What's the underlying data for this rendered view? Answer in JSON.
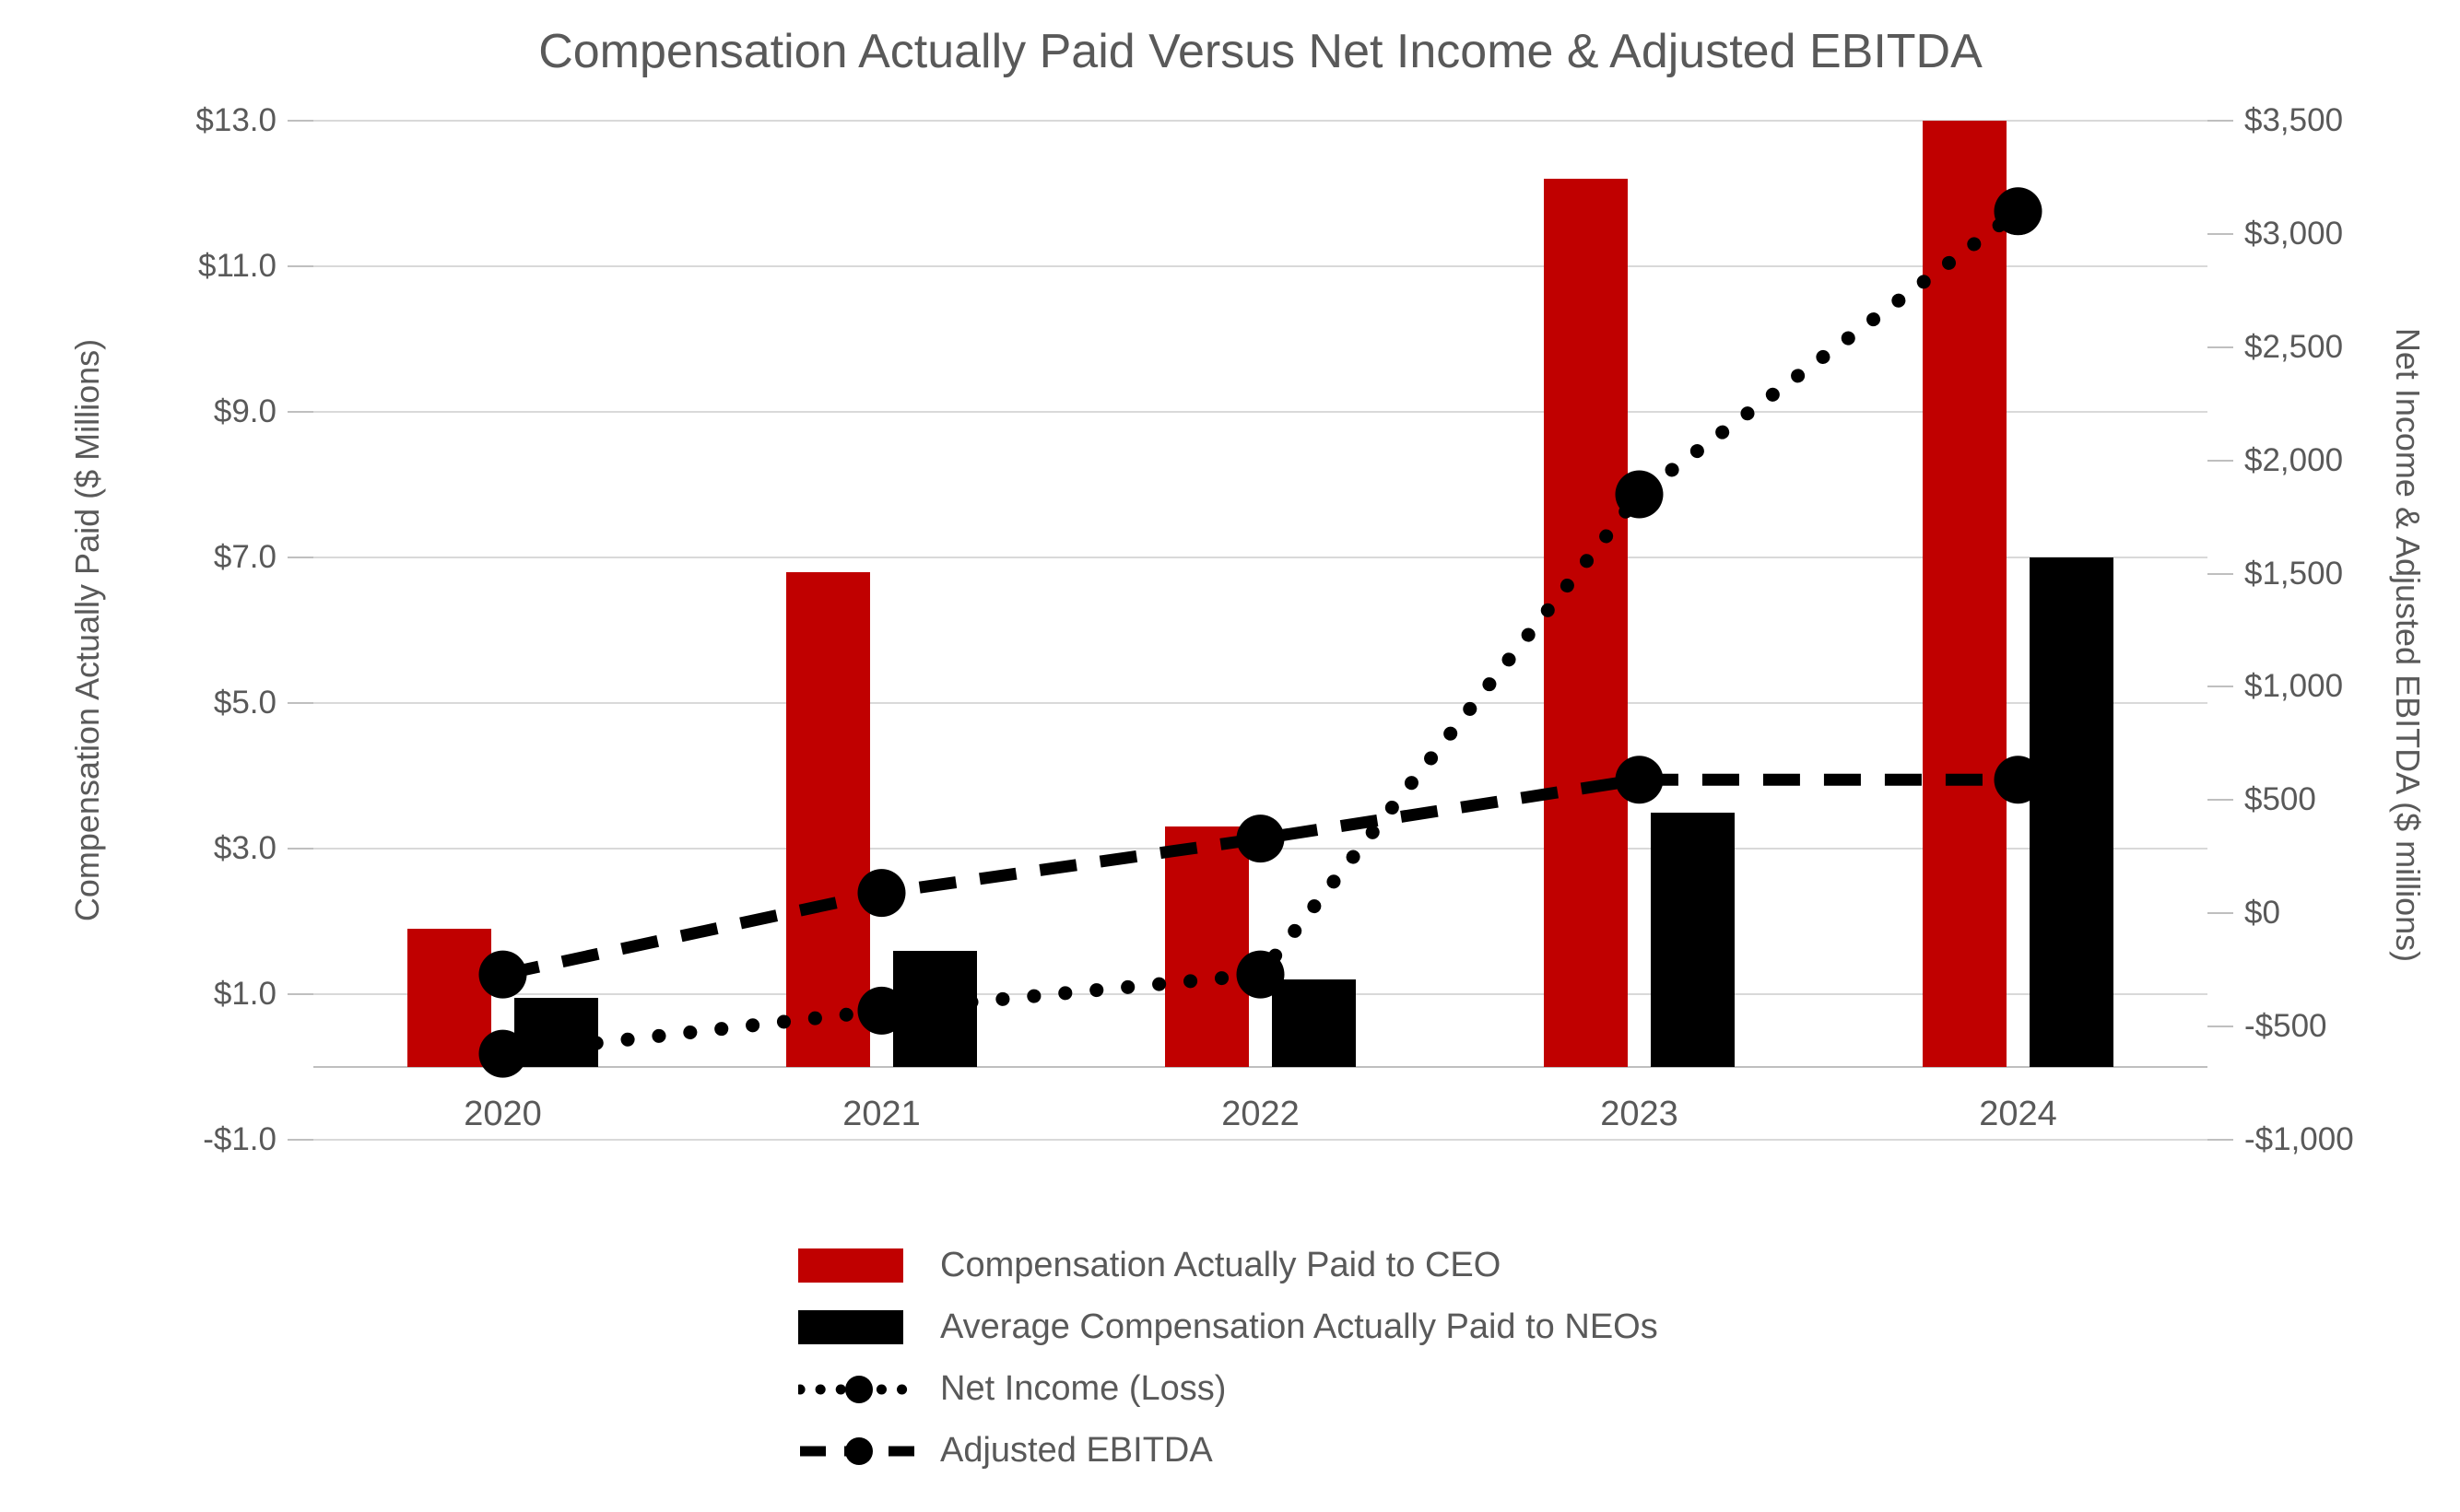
{
  "title": "Compensation Actually Paid Versus Net Income & Adjusted EBITDA",
  "chart_data": {
    "type": "bar",
    "subtype": "combo bar + line, dual axis",
    "categories": [
      "2020",
      "2021",
      "2022",
      "2023",
      "2024"
    ],
    "series": [
      {
        "name": "Compensation Actually Paid to CEO",
        "type": "bar",
        "axis": "left",
        "color": "#C00000",
        "values": [
          1.9,
          6.8,
          3.3,
          12.2,
          13.0
        ]
      },
      {
        "name": "Average Compensation Actually Paid to NEOs",
        "type": "bar",
        "axis": "left",
        "color": "#000000",
        "values": [
          0.95,
          1.6,
          1.2,
          3.5,
          7.0
        ]
      },
      {
        "name": "Net Income (Loss)",
        "type": "line",
        "style": "dotted",
        "axis": "right",
        "color": "#000000",
        "values": [
          -620,
          -430,
          -270,
          1850,
          3100
        ]
      },
      {
        "name": "Adjusted EBITDA",
        "type": "line",
        "style": "dashed",
        "axis": "right",
        "color": "#000000",
        "values": [
          -270,
          90,
          330,
          590,
          590
        ]
      }
    ],
    "left_axis": {
      "label": "Compensation Actually Paid ($ Millions)",
      "min": -1,
      "max": 13,
      "tick_values": [
        13,
        11,
        9,
        7,
        5,
        3,
        1,
        -1
      ],
      "tick_labels": [
        "$13.0",
        "$11.0",
        "$9.0",
        "$7.0",
        "$5.0",
        "$3.0",
        "$1.0",
        "-$1.0"
      ]
    },
    "right_axis": {
      "label": "Net Income & Adjusted EBITDA ($ millions)",
      "min": -1000,
      "max": 3500,
      "tick_values": [
        3500,
        3000,
        2500,
        2000,
        1500,
        1000,
        500,
        0,
        -500,
        -1000
      ],
      "tick_labels": [
        "$3,500",
        "$3,000",
        "$2,500",
        "$2,000",
        "$1,500",
        "$1,000",
        "$500",
        "$0",
        "-$500",
        "-$1,000"
      ]
    },
    "grid": "horizontal gridlines at left-axis ticks",
    "legend_position": "bottom, stacked rows"
  },
  "colors": {
    "bar_ceo": "#C00000",
    "bar_neo": "#000000",
    "line": "#000000",
    "text": "#595959",
    "gridline": "#D9D9D9",
    "axis_line": "#BFBFBF",
    "background": "#FFFFFF"
  }
}
